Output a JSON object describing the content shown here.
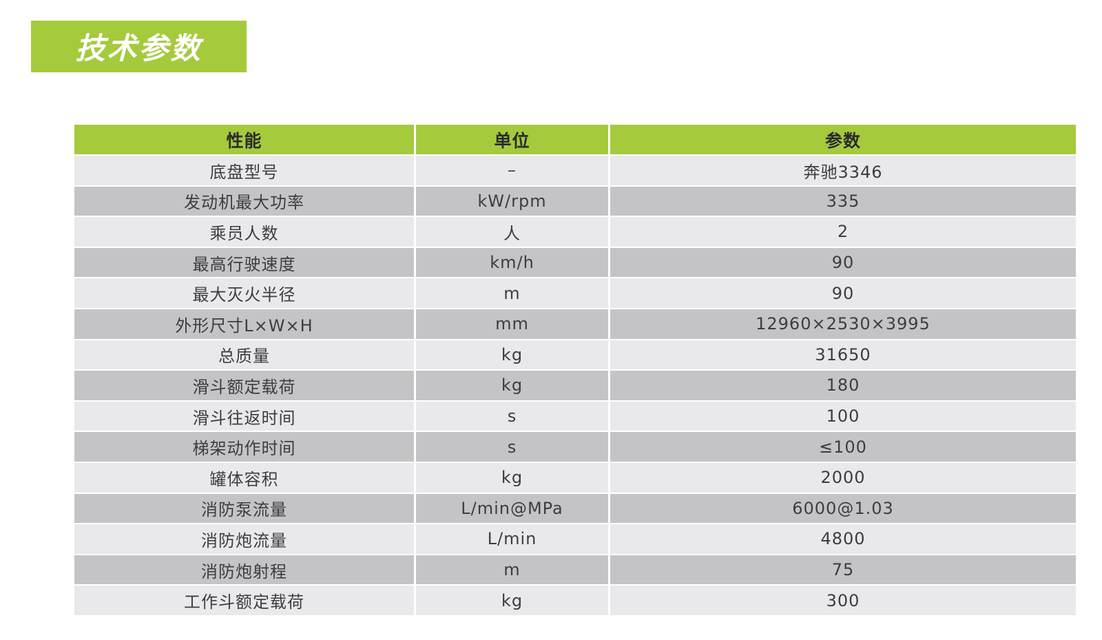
{
  "page": {
    "background": "#ffffff"
  },
  "colors": {
    "accent_green": "#a5ca3c",
    "row_light": "#e9e9eb",
    "row_dark": "#c4c4c6",
    "title_text": "#ffffff",
    "header_text": "#2b2b2d",
    "cell_text": "#3d3d3f"
  },
  "title": {
    "text": "技术参数"
  },
  "table": {
    "headers": {
      "performance": "性能",
      "unit": "单位",
      "parameter": "参数"
    },
    "rows": [
      {
        "name": "底盘型号",
        "unit": "–",
        "value": "奔驰3346"
      },
      {
        "name": "发动机最大功率",
        "unit": "kW/rpm",
        "value": "335"
      },
      {
        "name": "乘员人数",
        "unit": "人",
        "value": "2"
      },
      {
        "name": "最高行驶速度",
        "unit": "km/h",
        "value": "90"
      },
      {
        "name": "最大灭火半径",
        "unit": "m",
        "value": "90"
      },
      {
        "name": "外形尺寸L×W×H",
        "unit": "mm",
        "value": "12960×2530×3995"
      },
      {
        "name": "总质量",
        "unit": "kg",
        "value": "31650"
      },
      {
        "name": "滑斗额定载荷",
        "unit": "kg",
        "value": "180"
      },
      {
        "name": "滑斗往返时间",
        "unit": "s",
        "value": "100"
      },
      {
        "name": "梯架动作时间",
        "unit": "s",
        "value": "≤100"
      },
      {
        "name": "罐体容积",
        "unit": "kg",
        "value": "2000"
      },
      {
        "name": "消防泵流量",
        "unit": "L/min@MPa",
        "value": "6000@1.03"
      },
      {
        "name": "消防炮流量",
        "unit": "L/min",
        "value": "4800"
      },
      {
        "name": "消防炮射程",
        "unit": "m",
        "value": "75"
      },
      {
        "name": "工作斗额定载荷",
        "unit": "kg",
        "value": "300"
      }
    ]
  }
}
